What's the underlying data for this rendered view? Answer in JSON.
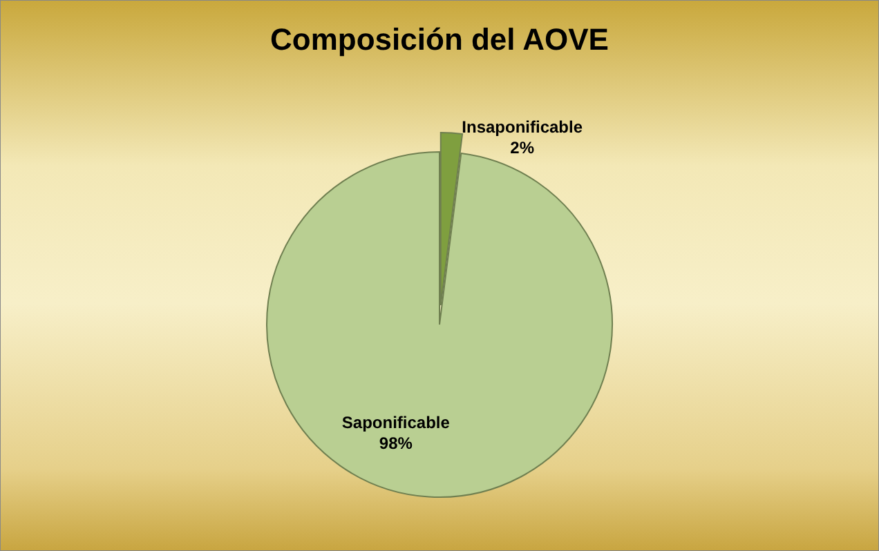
{
  "chart_data": {
    "type": "pie",
    "title": "Composición del AOVE",
    "categories": [
      "Insaponificable",
      "Saponificable"
    ],
    "values": [
      2,
      98
    ],
    "value_labels": [
      "2%",
      "98%"
    ],
    "colors": [
      "#7f9f3f",
      "#b9cf92"
    ],
    "legend": false
  }
}
